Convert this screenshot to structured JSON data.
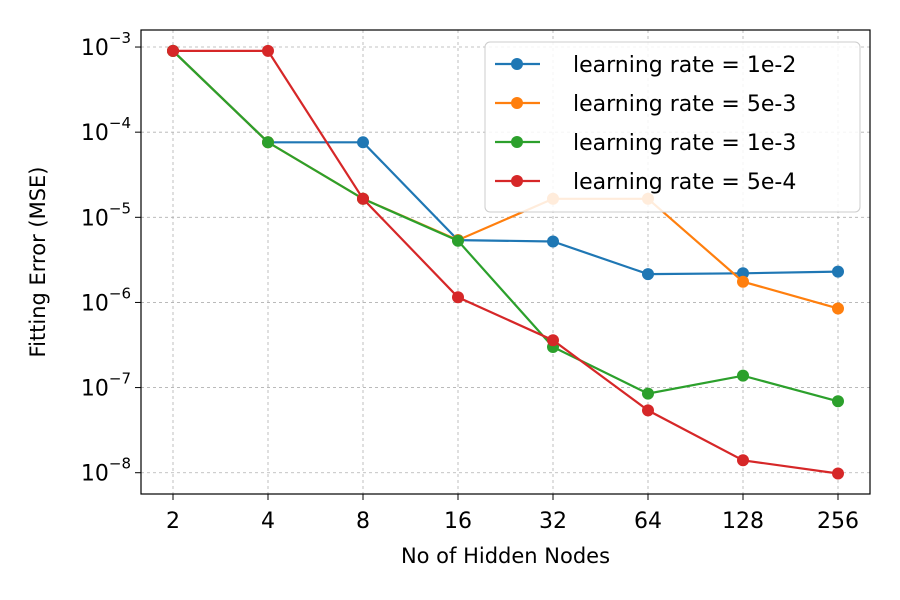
{
  "chart_data": {
    "type": "line",
    "title": "",
    "xlabel": "No of Hidden Nodes",
    "ylabel": "Fitting Error (MSE)",
    "x_scale": "log2",
    "y_scale": "log10",
    "categories": [
      "2",
      "4",
      "8",
      "16",
      "32",
      "64",
      "128",
      "256"
    ],
    "x": [
      2,
      4,
      8,
      16,
      32,
      64,
      128,
      256
    ],
    "y_ticks": [
      {
        "exp": -3,
        "base": "10",
        "power": "−3"
      },
      {
        "exp": -4,
        "base": "10",
        "power": "−4"
      },
      {
        "exp": -5,
        "base": "10",
        "power": "−5"
      },
      {
        "exp": -6,
        "base": "10",
        "power": "−6"
      },
      {
        "exp": -7,
        "base": "10",
        "power": "−7"
      },
      {
        "exp": -8,
        "base": "10",
        "power": "−8"
      }
    ],
    "grid": true,
    "legend_position": "top-right",
    "series": [
      {
        "name": "learning rate = 1e-2",
        "color": "#1f77b4",
        "values": [
          0.0009,
          7.6e-05,
          7.6e-05,
          5.4e-06,
          5.2e-06,
          2.15e-06,
          2.2e-06,
          2.3e-06
        ]
      },
      {
        "name": "learning rate = 5e-3",
        "color": "#ff7f0e",
        "values": [
          0.0009,
          7.6e-05,
          1.65e-05,
          5.4e-06,
          1.65e-05,
          1.65e-05,
          1.75e-06,
          8.5e-07
        ]
      },
      {
        "name": "learning rate = 1e-3",
        "color": "#2ca02c",
        "values": [
          0.0009,
          7.6e-05,
          1.65e-05,
          5.3e-06,
          3e-07,
          8.5e-08,
          1.38e-07,
          6.9e-08
        ]
      },
      {
        "name": "learning rate = 5e-4",
        "color": "#d62728",
        "values": [
          0.0009,
          0.0009,
          1.65e-05,
          1.15e-06,
          3.6e-07,
          5.4e-08,
          1.4e-08,
          9.8e-09
        ]
      }
    ]
  }
}
